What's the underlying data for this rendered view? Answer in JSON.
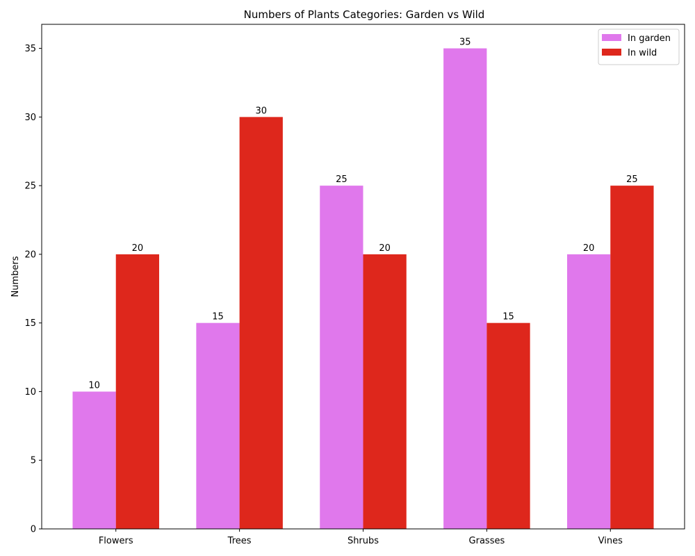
{
  "chart_data": {
    "type": "bar",
    "title": "Numbers of Plants Categories: Garden vs Wild",
    "xlabel": "",
    "ylabel": "Numbers",
    "categories": [
      "Flowers",
      "Trees",
      "Shrubs",
      "Grasses",
      "Vines"
    ],
    "series": [
      {
        "name": "In garden",
        "values": [
          10,
          15,
          25,
          35,
          20
        ],
        "color": "#e078ec"
      },
      {
        "name": "In wild",
        "values": [
          20,
          30,
          20,
          15,
          25
        ],
        "color": "#de271c"
      }
    ],
    "ylim": [
      0,
      36.75
    ],
    "yticks": [
      0,
      5,
      10,
      15,
      20,
      25,
      30,
      35
    ],
    "grid": false,
    "legend_position": "top-right"
  }
}
